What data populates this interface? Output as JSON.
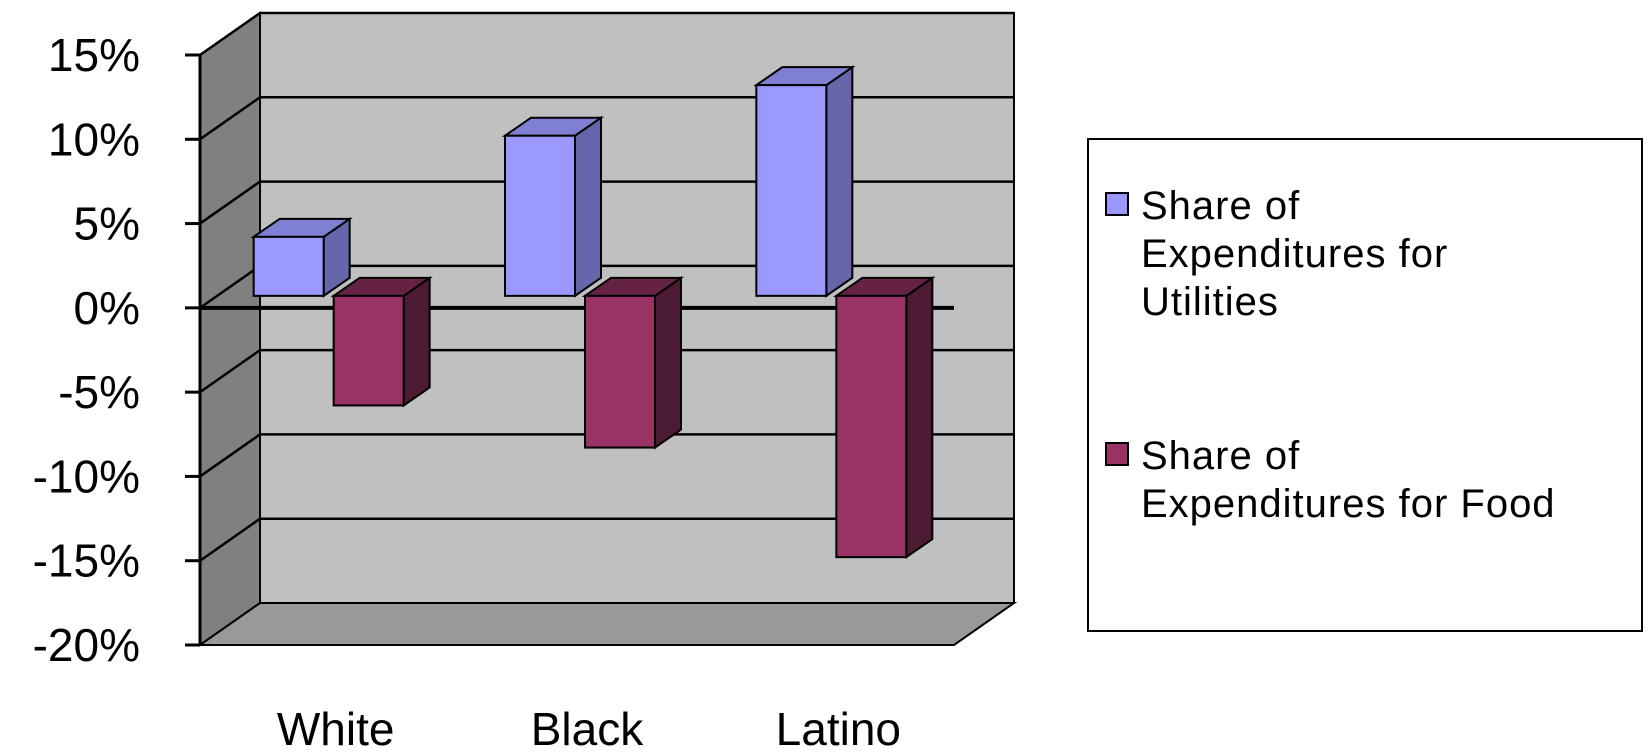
{
  "chart_data": {
    "type": "bar",
    "categories": [
      "White",
      "Black",
      "Latino"
    ],
    "series": [
      {
        "name": "Share of Expenditures for Utilities",
        "values": [
          3.5,
          9.5,
          12.5
        ],
        "color": "#9999ff",
        "color_side": "#6666aa",
        "color_top": "#7f7fd4"
      },
      {
        "name": "Share of Expenditures for Food",
        "values": [
          -6.5,
          -9,
          -15.5
        ],
        "color": "#993366",
        "color_side": "#4d1a33",
        "color_top": "#662244"
      }
    ],
    "yticks": [
      "15%",
      "10%",
      "5%",
      "0%",
      "-5%",
      "-10%",
      "-15%",
      "-20%"
    ],
    "ylim": [
      -20,
      15
    ],
    "grid": true,
    "legend_position": "right",
    "wall_color": "#c0c0c0",
    "side_wall_color": "#808080",
    "floor_color": "#999999"
  },
  "legend": {
    "items": [
      {
        "line1": "Share of",
        "line2": "Expenditures for",
        "line3": "Utilities"
      },
      {
        "line1": "Share of",
        "line2": "Expenditures for Food",
        "line3": ""
      }
    ]
  }
}
